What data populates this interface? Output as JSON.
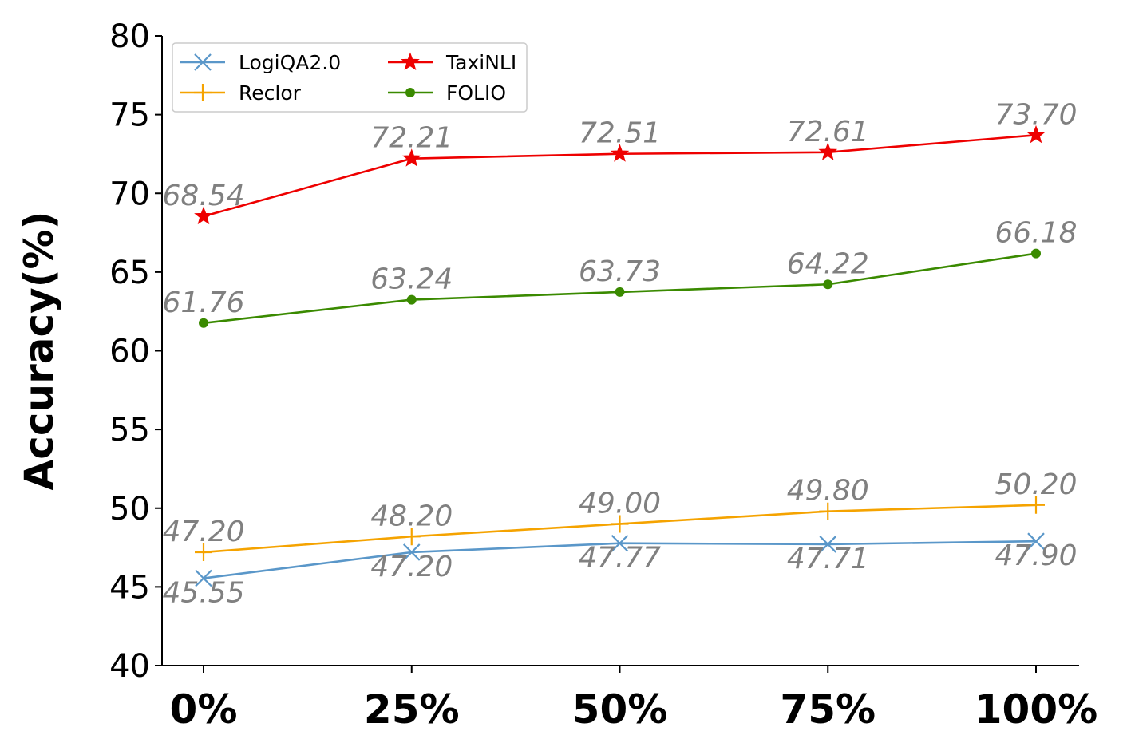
{
  "chart_data": {
    "type": "line",
    "title": "",
    "xlabel": "",
    "ylabel": "Accuracy(%)",
    "categories": [
      "0%",
      "25%",
      "50%",
      "75%",
      "100%"
    ],
    "ylim": [
      40,
      80
    ],
    "yticks": [
      40,
      45,
      50,
      55,
      60,
      65,
      70,
      75,
      80
    ],
    "grid": false,
    "legend_position": "top-left",
    "series": [
      {
        "name": "LogiQA2.0",
        "color": "#5a97c9",
        "marker": "x",
        "label_position": "below",
        "values": [
          45.55,
          47.2,
          47.77,
          47.71,
          47.9
        ],
        "labels": [
          "45.55",
          "47.20",
          "47.77",
          "47.71",
          "47.90"
        ]
      },
      {
        "name": "Reclor",
        "color": "#f5a300",
        "marker": "plus",
        "label_position": "above",
        "values": [
          47.2,
          48.2,
          49.0,
          49.8,
          50.2
        ],
        "labels": [
          "47.20",
          "48.20",
          "49.00",
          "49.80",
          "50.20"
        ]
      },
      {
        "name": "TaxiNLI",
        "color": "#ee0000",
        "marker": "star",
        "label_position": "above",
        "values": [
          68.54,
          72.21,
          72.51,
          72.61,
          73.7
        ],
        "labels": [
          "68.54",
          "72.21",
          "72.51",
          "72.61",
          "73.70"
        ]
      },
      {
        "name": "FOLIO",
        "color": "#3a8a00",
        "marker": "dot",
        "label_position": "above",
        "values": [
          61.76,
          63.24,
          63.73,
          64.22,
          66.18
        ],
        "labels": [
          "61.76",
          "63.24",
          "63.73",
          "64.22",
          "66.18"
        ]
      }
    ],
    "legend_order": [
      "LogiQA2.0",
      "TaxiNLI",
      "Reclor",
      "FOLIO"
    ]
  }
}
